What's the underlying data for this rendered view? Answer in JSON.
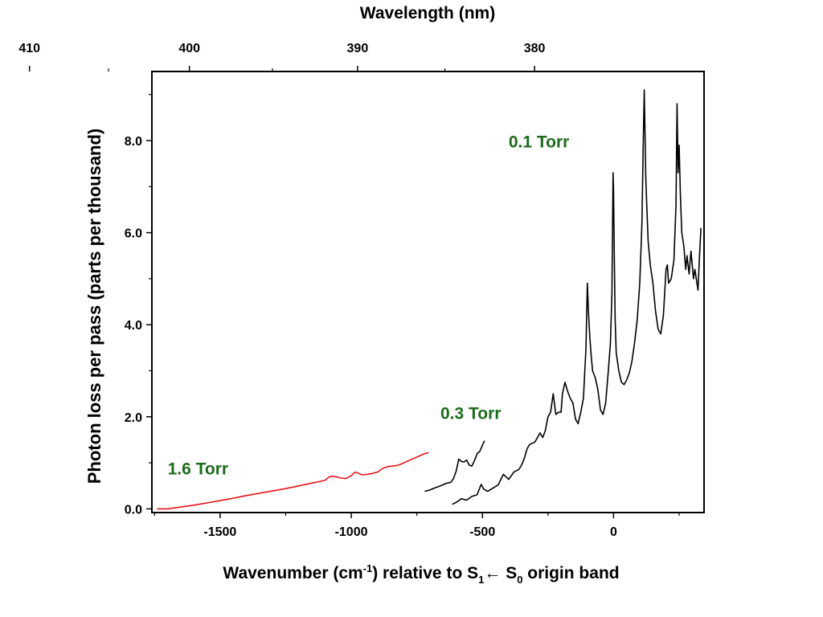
{
  "chart_data": {
    "type": "line",
    "top_axis": {
      "label": "Wavelength (nm)",
      "ticks": [
        410,
        400,
        390,
        380
      ],
      "tick_labels": [
        "410",
        "400",
        "390",
        "380"
      ]
    },
    "xlabel": {
      "prefix": "Wavenumber (cm",
      "sup": "-1",
      "mid": ") relative to S",
      "sub1": "1",
      "arrow": "←",
      "s": " S",
      "sub0": "0",
      "suffix": " origin band"
    },
    "ylabel": "Photon loss per pass (parts per thousand)",
    "xlim": [
      -1760,
      345
    ],
    "ylim": [
      -0.08,
      9.5
    ],
    "x_ticks": [
      -1500,
      -1000,
      -500,
      0
    ],
    "x_tick_labels": [
      "-1500",
      "-1000",
      "-500",
      "0"
    ],
    "y_ticks": [
      0,
      2,
      4,
      6,
      8
    ],
    "y_tick_labels": [
      "0.0",
      "2.0",
      "4.0",
      "6.0",
      "8.0"
    ],
    "grid": false,
    "series": [
      {
        "name": "1.6 Torr",
        "color": "#e8141a",
        "x": [
          -1740,
          -1700,
          -1650,
          -1600,
          -1550,
          -1500,
          -1450,
          -1400,
          -1350,
          -1300,
          -1250,
          -1200,
          -1150,
          -1100,
          -1085,
          -1075,
          -1060,
          -1040,
          -1020,
          -1000,
          -985,
          -970,
          -960,
          -940,
          -920,
          -900,
          -880,
          -860,
          -840,
          -820,
          -800,
          -780,
          -760,
          -740,
          -720,
          -705
        ],
        "values": [
          0.0,
          0.0,
          0.04,
          0.08,
          0.13,
          0.18,
          0.23,
          0.29,
          0.34,
          0.39,
          0.44,
          0.5,
          0.56,
          0.62,
          0.69,
          0.71,
          0.7,
          0.67,
          0.66,
          0.72,
          0.8,
          0.77,
          0.74,
          0.75,
          0.77,
          0.8,
          0.88,
          0.92,
          0.93,
          0.95,
          1.0,
          1.05,
          1.1,
          1.15,
          1.2,
          1.22
        ]
      },
      {
        "name": "0.3 Torr",
        "color": "#000000",
        "x": [
          -720,
          -700,
          -680,
          -660,
          -640,
          -620,
          -610,
          -600,
          -590,
          -580,
          -570,
          -560,
          -550,
          -540,
          -530,
          -520,
          -510,
          -500,
          -492
        ],
        "values": [
          0.38,
          0.41,
          0.46,
          0.5,
          0.55,
          0.58,
          0.66,
          0.82,
          1.08,
          1.03,
          1.02,
          1.06,
          0.95,
          0.93,
          1.05,
          1.2,
          1.25,
          1.38,
          1.48
        ]
      },
      {
        "name": "0.1 Torr",
        "color": "#000000",
        "x": [
          -615,
          -600,
          -580,
          -560,
          -540,
          -520,
          -505,
          -495,
          -480,
          -460,
          -440,
          -420,
          -400,
          -380,
          -360,
          -350,
          -340,
          -330,
          -320,
          -300,
          -280,
          -270,
          -260,
          -250,
          -240,
          -230,
          -220,
          -210,
          -200,
          -195,
          -185,
          -175,
          -165,
          -155,
          -145,
          -135,
          -125,
          -115,
          -105,
          -100,
          -95,
          -90,
          -85,
          -80,
          -70,
          -60,
          -50,
          -40,
          -30,
          -20,
          -12,
          -6,
          -2,
          0,
          3,
          6,
          10,
          20,
          30,
          40,
          50,
          60,
          70,
          80,
          90,
          100,
          108,
          113,
          117,
          120,
          123,
          127,
          132,
          140,
          150,
          160,
          170,
          180,
          190,
          200,
          205,
          210,
          220,
          230,
          238,
          242,
          246,
          250,
          255,
          260,
          268,
          275,
          280,
          288,
          295,
          300,
          305,
          310,
          318,
          322,
          327,
          333
        ],
        "values": [
          0.1,
          0.14,
          0.22,
          0.19,
          0.27,
          0.31,
          0.53,
          0.43,
          0.38,
          0.45,
          0.52,
          0.75,
          0.64,
          0.8,
          0.86,
          0.96,
          1.1,
          1.3,
          1.4,
          1.45,
          1.65,
          1.55,
          1.7,
          2.0,
          2.1,
          2.5,
          2.05,
          2.1,
          2.1,
          2.5,
          2.75,
          2.55,
          2.4,
          2.3,
          1.95,
          1.85,
          2.1,
          2.4,
          3.5,
          4.9,
          4.2,
          3.7,
          3.3,
          3.0,
          2.85,
          2.6,
          2.15,
          2.05,
          2.3,
          3.0,
          3.6,
          4.7,
          7.3,
          6.9,
          5.4,
          4.1,
          3.4,
          3.0,
          2.75,
          2.7,
          2.8,
          2.95,
          3.2,
          3.6,
          4.1,
          4.9,
          6.2,
          7.9,
          9.1,
          8.1,
          7.2,
          6.5,
          5.8,
          5.3,
          4.9,
          4.3,
          3.9,
          3.8,
          4.2,
          5.2,
          5.3,
          4.9,
          5.0,
          5.4,
          6.6,
          8.8,
          7.3,
          7.9,
          6.8,
          6.0,
          5.7,
          5.2,
          5.5,
          5.1,
          5.6,
          5.3,
          5.0,
          5.2,
          4.9,
          4.75,
          5.4,
          6.1
        ]
      }
    ],
    "annotations": [
      {
        "text": "1.6 Torr",
        "x": -1700,
        "y": 0.75,
        "color": "#1b6b1b"
      },
      {
        "text": "0.3 Torr",
        "x": -660,
        "y": 1.95,
        "color": "#1b6b1b"
      },
      {
        "text": "0.1 Torr",
        "x": -400,
        "y": 7.85,
        "color": "#1b6b1b"
      }
    ]
  }
}
